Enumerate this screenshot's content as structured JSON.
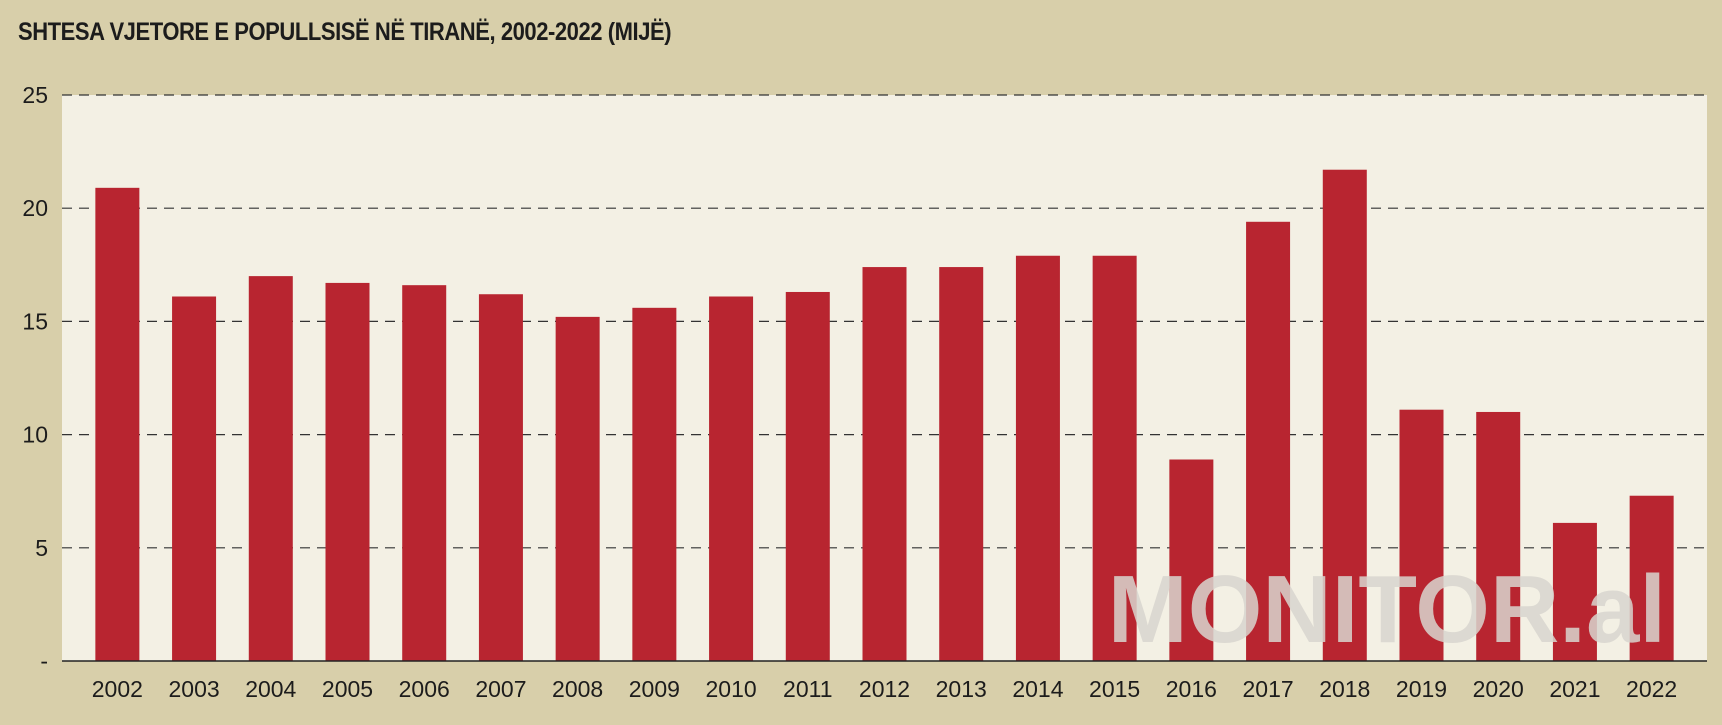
{
  "title": "SHTESA VJETORE E POPULLSISË NË TIRANË, 2002-2022 (MIJË)",
  "watermark": "MONITOR.al",
  "colors": {
    "background": "#d8cfaa",
    "plot_background": "#f3f0e4",
    "bar": "#b82530",
    "gridline": "#333333",
    "text": "#1c1c1c"
  },
  "chart_data": {
    "type": "bar",
    "title": "SHTESA VJETORE E POPULLSISË NË TIRANË, 2002-2022 (MIJË)",
    "xlabel": "",
    "ylabel": "",
    "categories": [
      "2002",
      "2003",
      "2004",
      "2005",
      "2006",
      "2007",
      "2008",
      "2009",
      "2010",
      "2011",
      "2012",
      "2013",
      "2014",
      "2015",
      "2016",
      "2017",
      "2018",
      "2019",
      "2020",
      "2021",
      "2022"
    ],
    "values": [
      20.9,
      16.1,
      17.0,
      16.7,
      16.6,
      16.2,
      15.2,
      15.6,
      16.1,
      16.3,
      17.4,
      17.4,
      17.9,
      17.9,
      8.9,
      19.4,
      21.7,
      11.1,
      11.0,
      6.1,
      7.3
    ],
    "ylim": [
      0,
      25
    ],
    "yticks": [
      "-",
      "5",
      "10",
      "15",
      "20",
      "25"
    ],
    "grid": true,
    "grid_style": "dashed",
    "legend": false
  }
}
